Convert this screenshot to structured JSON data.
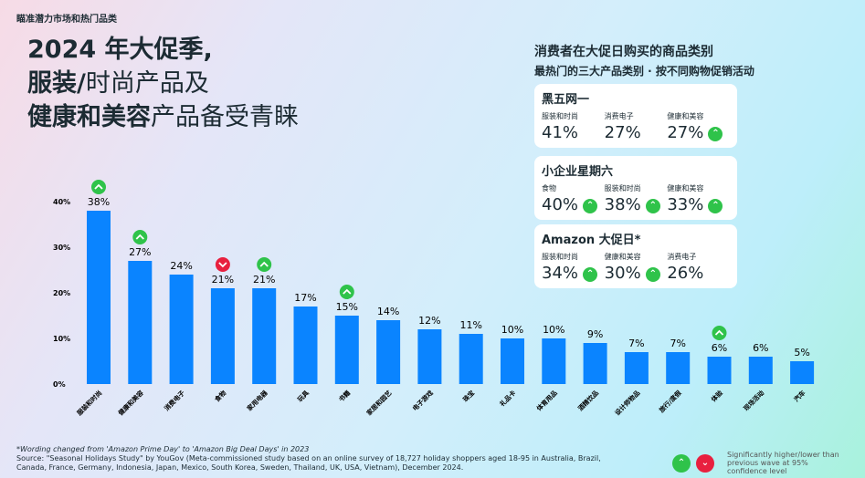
{
  "kicker": "瞄准潜力市场和热门品类",
  "title": {
    "line1": "2024 年大促季,",
    "line2a": "服装/",
    "line2b": "时尚产品及",
    "line3a": "健康和美容",
    "line3b": "产品备受青睐"
  },
  "panel": {
    "title": "消费者在大促日购买的商品类别",
    "subtitle": "最热门的三大产品类别 · 按不同购物促销活动",
    "cards": [
      {
        "name": "黑五网一",
        "items": [
          {
            "label": "服装和时尚",
            "value": "41%",
            "icon": ""
          },
          {
            "label": "消费电子",
            "value": "27%",
            "icon": ""
          },
          {
            "label": "健康和美容",
            "value": "27%",
            "icon": "up"
          }
        ]
      },
      {
        "name": "小企业星期六",
        "items": [
          {
            "label": "食物",
            "value": "40%",
            "icon": "up"
          },
          {
            "label": "服装和时尚",
            "value": "38%",
            "icon": "up"
          },
          {
            "label": "健康和美容",
            "value": "33%",
            "icon": "up"
          }
        ]
      },
      {
        "name": "Amazon 大促日*",
        "items": [
          {
            "label": "服装和时尚",
            "value": "34%",
            "icon": "up"
          },
          {
            "label": "健康和美容",
            "value": "30%",
            "icon": "up"
          },
          {
            "label": "消费电子",
            "value": "26%",
            "icon": ""
          }
        ]
      }
    ]
  },
  "chart_data": {
    "type": "bar",
    "ylim": [
      0,
      40
    ],
    "yticks": [
      "0%",
      "10%",
      "20%",
      "30%",
      "40%"
    ],
    "bar_color": "#0a84ff",
    "categories": [
      "服装和时尚",
      "健康和美容",
      "消费电子",
      "食物",
      "家用电器",
      "玩具",
      "书籍",
      "家居和园艺",
      "电子游戏",
      "珠宝",
      "礼品卡",
      "体育用品",
      "酒精饮品",
      "设计师物品",
      "旅行/度假",
      "体验",
      "现场活动",
      "汽车"
    ],
    "values": [
      38,
      27,
      24,
      21,
      21,
      17,
      15,
      14,
      12,
      11,
      10,
      10,
      9,
      7,
      7,
      6,
      6,
      5
    ],
    "labels": [
      "38%",
      "27%",
      "24%",
      "21%",
      "21%",
      "17%",
      "15%",
      "14%",
      "12%",
      "11%",
      "10%",
      "10%",
      "9%",
      "7%",
      "7%",
      "6%",
      "6%",
      "5%"
    ],
    "markers": [
      "up",
      "up",
      "",
      "down",
      "up",
      "",
      "up",
      "",
      "",
      "",
      "",
      "",
      "",
      "",
      "",
      "up",
      "",
      ""
    ]
  },
  "footnote": {
    "line1": "*Wording changed from 'Amazon Prime Day' to 'Amazon Big Deal Days' in 2023",
    "line2": "Source: \"Seasonal Holidays Study\" by YouGov (Meta-commissioned study based on an online survey of 18,727 holiday shoppers aged 18-95 in Australia, Brazil, Canada, France, Germany, Indonesia, Japan, Mexico, South Korea, Sweden, Thailand, UK, USA, Vietnam), December 2024."
  },
  "legend": {
    "text": "Significantly higher/lower than previous wave at 95% confidence level",
    "up_symbol": "⌃",
    "down_symbol": "⌄"
  }
}
